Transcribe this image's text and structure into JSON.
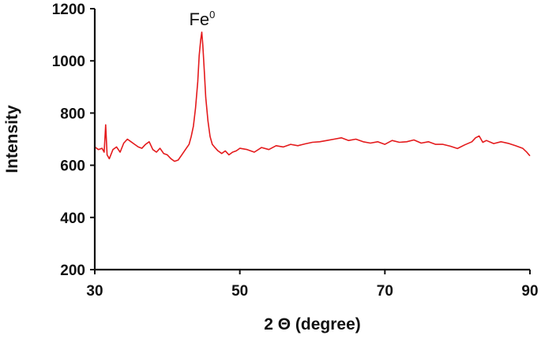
{
  "chart_data": {
    "type": "line",
    "title": "",
    "xlabel": "2 Θ (degree)",
    "ylabel": "Intensity",
    "xlim": [
      30,
      90
    ],
    "ylim": [
      200,
      1200
    ],
    "xticks": [
      30,
      50,
      70,
      90
    ],
    "yticks": [
      200,
      400,
      600,
      800,
      1000,
      1200
    ],
    "grid": false,
    "legend": "none",
    "series": [
      {
        "color": "#e41a1c",
        "x": [
          30,
          30.5,
          31,
          31.3,
          31.5,
          31.7,
          32,
          32.5,
          33,
          33.5,
          34,
          34.5,
          35,
          35.5,
          36,
          36.5,
          37,
          37.5,
          38,
          38.5,
          39,
          39.5,
          40,
          40.5,
          41,
          41.5,
          42,
          42.5,
          43,
          43.3,
          43.6,
          43.9,
          44.2,
          44.4,
          44.6,
          44.75,
          44.9,
          45.1,
          45.3,
          45.6,
          45.9,
          46.2,
          46.5,
          47,
          47.5,
          48,
          48.5,
          49,
          49.5,
          50,
          51,
          52,
          53,
          54,
          55,
          56,
          57,
          58,
          59,
          60,
          61,
          62,
          63,
          64,
          65,
          66,
          67,
          68,
          69,
          70,
          71,
          72,
          73,
          74,
          75,
          76,
          77,
          78,
          79,
          80,
          81,
          82,
          82.5,
          83,
          83.5,
          84,
          85,
          86,
          87,
          88,
          89,
          89.5,
          90
        ],
        "y": [
          670,
          660,
          665,
          650,
          755,
          640,
          625,
          660,
          670,
          650,
          685,
          700,
          690,
          680,
          670,
          665,
          680,
          690,
          660,
          650,
          665,
          645,
          640,
          625,
          615,
          620,
          640,
          660,
          680,
          710,
          750,
          820,
          920,
          1020,
          1080,
          1110,
          1060,
          960,
          860,
          770,
          710,
          680,
          670,
          655,
          645,
          655,
          640,
          650,
          655,
          665,
          660,
          650,
          668,
          660,
          675,
          670,
          680,
          675,
          682,
          688,
          690,
          695,
          700,
          705,
          695,
          700,
          690,
          685,
          690,
          680,
          695,
          688,
          690,
          697,
          685,
          690,
          680,
          680,
          673,
          664,
          678,
          690,
          705,
          712,
          688,
          695,
          683,
          690,
          684,
          675,
          665,
          652,
          636
        ]
      }
    ],
    "annotations": [
      {
        "text": "Fe",
        "superscript": "0",
        "x": 44.8,
        "y": 1160
      }
    ]
  }
}
